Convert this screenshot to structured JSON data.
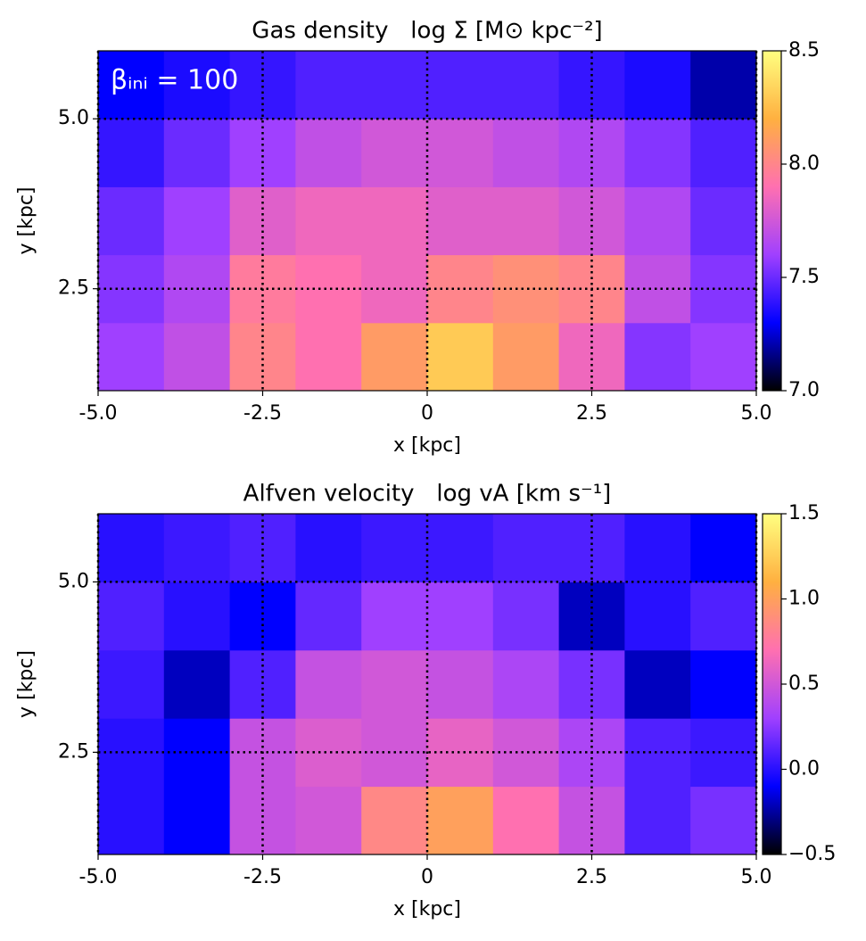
{
  "chart_data": [
    {
      "type": "heatmap",
      "title": "Gas density   log Σ [M⊙ kpc⁻²]",
      "annotation": "βᵢₙᵢ = 100",
      "xlabel": "x [kpc]",
      "ylabel": "y [kpc]",
      "xlim": [
        -5,
        5
      ],
      "ylim": [
        1.0,
        6.0
      ],
      "xticks": [
        {
          "value": -5,
          "label": "-5.0"
        },
        {
          "value": -2.5,
          "label": "-2.5"
        },
        0,
        2.5,
        {
          "value": 5,
          "label": "5.0"
        }
      ],
      "yticks": [
        2.5,
        {
          "value": 5,
          "label": "5.0"
        }
      ],
      "grid": true,
      "xbins": [
        -5,
        -4,
        -3,
        -2,
        -1,
        0,
        1,
        2,
        3,
        4,
        5
      ],
      "ybins": [
        1,
        2,
        3,
        4,
        5,
        6
      ],
      "values": [
        [
          7.6,
          7.7,
          8.0,
          7.9,
          8.1,
          8.3,
          8.1,
          7.85,
          7.55,
          7.6
        ],
        [
          7.55,
          7.65,
          7.95,
          7.9,
          7.85,
          8.0,
          8.05,
          8.0,
          7.7,
          7.55
        ],
        [
          7.5,
          7.6,
          7.8,
          7.85,
          7.85,
          7.8,
          7.8,
          7.75,
          7.65,
          7.5
        ],
        [
          7.4,
          7.5,
          7.6,
          7.7,
          7.75,
          7.75,
          7.7,
          7.65,
          7.55,
          7.45
        ],
        [
          7.3,
          7.35,
          7.4,
          7.45,
          7.45,
          7.45,
          7.45,
          7.4,
          7.35,
          7.2
        ]
      ],
      "clim": [
        7.0,
        8.5
      ],
      "cticks": [
        {
          "value": 7,
          "label": "7.0"
        },
        7.5,
        {
          "value": 8,
          "label": "8.0"
        },
        8.5
      ],
      "colormap": [
        "#000000",
        "#0000ff",
        "#a040ff",
        "#ff70b0",
        "#ffb040",
        "#ffff80"
      ]
    },
    {
      "type": "heatmap",
      "title": "Alfven velocity   log vA [km s⁻¹]",
      "xlabel": "x [kpc]",
      "ylabel": "y [kpc]",
      "xlim": [
        -5,
        5
      ],
      "ylim": [
        1.0,
        6.0
      ],
      "xticks": [
        {
          "value": -5,
          "label": "-5.0"
        },
        {
          "value": -2.5,
          "label": "-2.5"
        },
        0,
        2.5,
        {
          "value": 5,
          "label": "5.0"
        }
      ],
      "yticks": [
        2.5,
        {
          "value": 5,
          "label": "5.0"
        }
      ],
      "grid": true,
      "xbins": [
        -5,
        -4,
        -3,
        -2,
        -1,
        0,
        1,
        2,
        3,
        4,
        5
      ],
      "ybins": [
        1,
        2,
        3,
        4,
        5,
        6
      ],
      "values": [
        [
          0.0,
          -0.1,
          0.45,
          0.5,
          0.85,
          1.0,
          0.7,
          0.45,
          0.1,
          0.2
        ],
        [
          0.0,
          -0.1,
          0.45,
          0.55,
          0.5,
          0.6,
          0.5,
          0.35,
          0.1,
          0.05
        ],
        [
          0.05,
          -0.2,
          0.1,
          0.45,
          0.5,
          0.45,
          0.35,
          0.2,
          -0.2,
          -0.1
        ],
        [
          0.1,
          0.0,
          -0.1,
          0.15,
          0.3,
          0.3,
          0.2,
          -0.2,
          0.0,
          0.1
        ],
        [
          0.0,
          0.05,
          0.1,
          0.0,
          0.05,
          0.05,
          0.1,
          0.1,
          0.0,
          -0.1
        ]
      ],
      "clim": [
        -0.5,
        1.5
      ],
      "cticks": [
        {
          "value": -0.5,
          "label": "−0.5"
        },
        {
          "value": 0,
          "label": "0.0"
        },
        0.5,
        {
          "value": 1,
          "label": "1.0"
        },
        1.5
      ],
      "colormap": [
        "#000000",
        "#0000ff",
        "#a040ff",
        "#ff70b0",
        "#ffb040",
        "#ffff80"
      ]
    }
  ]
}
